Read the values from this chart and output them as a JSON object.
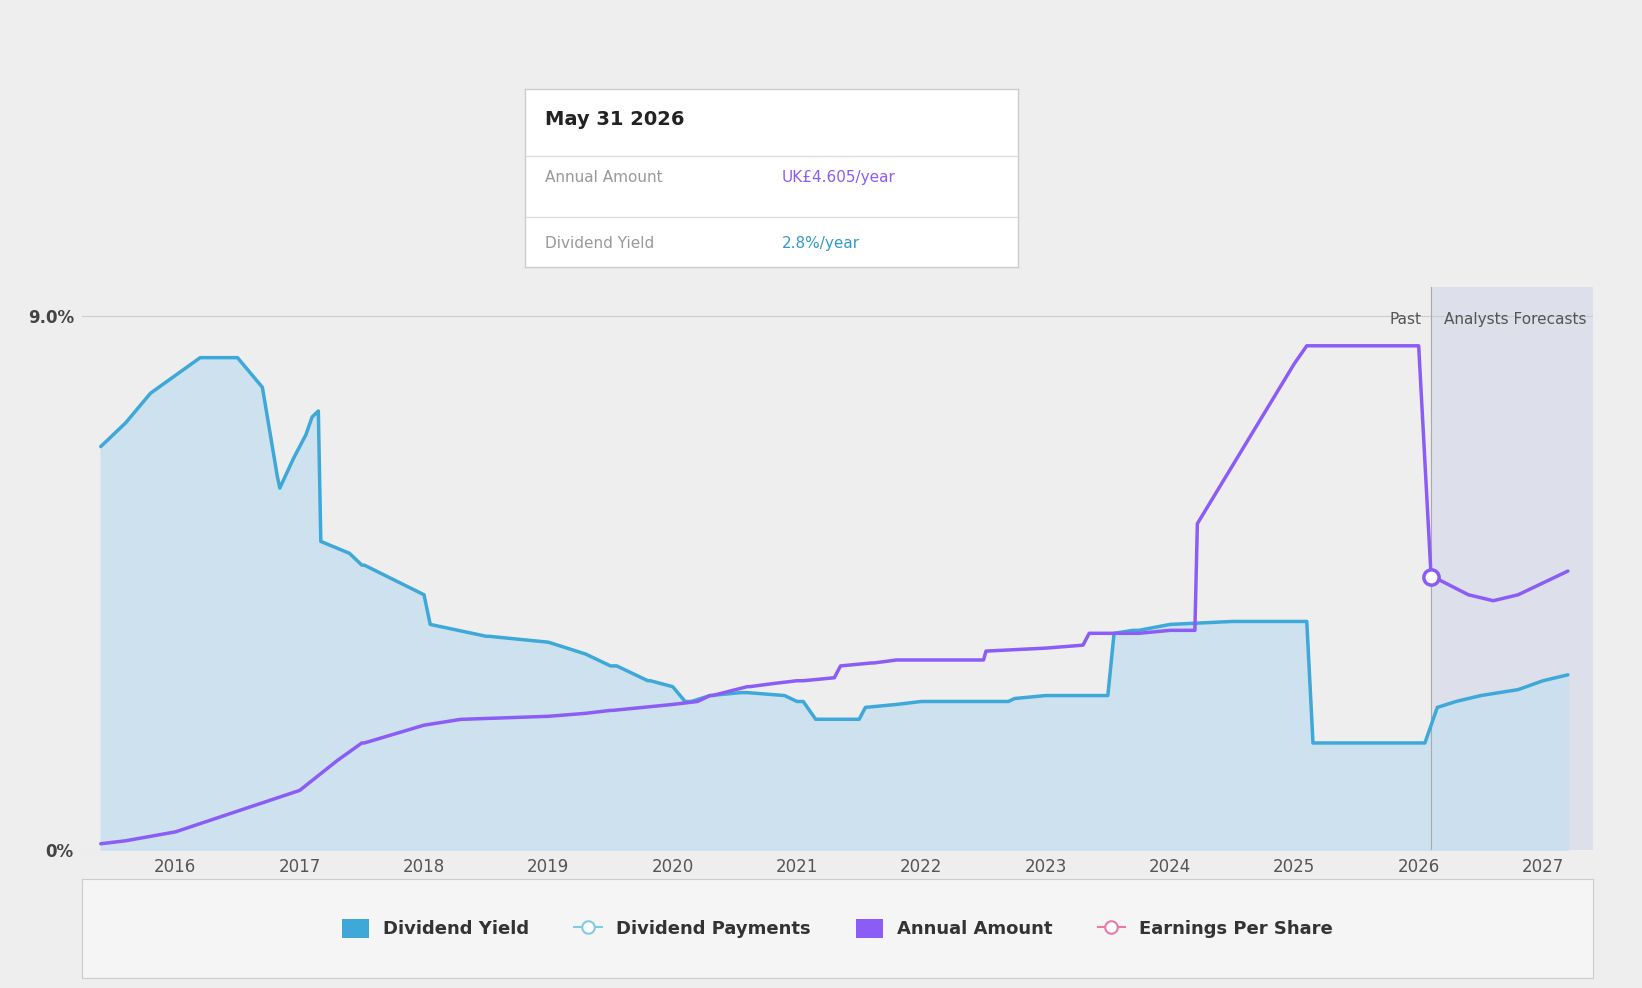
{
  "bg_color": "#eeeeee",
  "plot_bg_color": "#eeeeee",
  "forecast_bg_color": "#dde0ea",
  "dividend_yield_x": [
    2015.4,
    2015.6,
    2015.8,
    2016.0,
    2016.2,
    2016.5,
    2016.7,
    2016.82,
    2016.84,
    2016.95,
    2017.05,
    2017.1,
    2017.15,
    2017.17,
    2017.4,
    2017.5,
    2017.52,
    2018.0,
    2018.05,
    2018.5,
    2018.52,
    2019.0,
    2019.3,
    2019.5,
    2019.55,
    2019.8,
    2019.82,
    2020.0,
    2020.1,
    2020.15,
    2020.3,
    2020.55,
    2020.6,
    2020.9,
    2021.0,
    2021.05,
    2021.15,
    2021.5,
    2021.55,
    2021.8,
    2022.0,
    2022.5,
    2022.7,
    2022.75,
    2023.0,
    2023.05,
    2023.5,
    2023.55,
    2023.7,
    2023.75,
    2024.0,
    2024.5,
    2025.0,
    2025.05,
    2025.1,
    2025.15,
    2026.0,
    2026.05,
    2026.15,
    2026.3,
    2026.5,
    2026.8,
    2027.0,
    2027.2
  ],
  "dividend_yield_y": [
    6.8,
    7.2,
    7.7,
    8.0,
    8.3,
    8.3,
    7.8,
    6.3,
    6.1,
    6.6,
    7.0,
    7.3,
    7.4,
    5.2,
    5.0,
    4.8,
    4.8,
    4.3,
    3.8,
    3.6,
    3.6,
    3.5,
    3.3,
    3.1,
    3.1,
    2.85,
    2.85,
    2.75,
    2.5,
    2.5,
    2.6,
    2.65,
    2.65,
    2.6,
    2.5,
    2.5,
    2.2,
    2.2,
    2.4,
    2.45,
    2.5,
    2.5,
    2.5,
    2.55,
    2.6,
    2.6,
    2.6,
    3.65,
    3.7,
    3.7,
    3.8,
    3.85,
    3.85,
    3.85,
    3.85,
    1.8,
    1.8,
    1.8,
    2.4,
    2.5,
    2.6,
    2.7,
    2.85,
    2.95
  ],
  "dividend_yield_color": "#3ea8d8",
  "dividend_yield_fill_color": "#c8dff0",
  "annual_amount_x": [
    2015.4,
    2015.6,
    2016.0,
    2016.5,
    2017.0,
    2017.3,
    2017.5,
    2017.52,
    2018.0,
    2018.3,
    2018.32,
    2019.0,
    2019.3,
    2019.5,
    2019.52,
    2020.0,
    2020.2,
    2020.3,
    2020.32,
    2020.6,
    2020.62,
    2020.8,
    2021.0,
    2021.05,
    2021.3,
    2021.35,
    2021.6,
    2021.62,
    2021.8,
    2022.0,
    2022.5,
    2022.52,
    2023.0,
    2023.3,
    2023.35,
    2023.7,
    2023.75,
    2024.0,
    2024.2,
    2024.22,
    2025.0,
    2025.1,
    2025.12,
    2025.8,
    2026.0,
    2026.1,
    2026.12,
    2026.4,
    2026.6,
    2026.8,
    2027.0,
    2027.2
  ],
  "annual_amount_y": [
    0.1,
    0.15,
    0.3,
    0.65,
    1.0,
    1.5,
    1.8,
    1.8,
    2.1,
    2.2,
    2.2,
    2.25,
    2.3,
    2.35,
    2.35,
    2.45,
    2.5,
    2.6,
    2.6,
    2.75,
    2.75,
    2.8,
    2.85,
    2.85,
    2.9,
    3.1,
    3.15,
    3.15,
    3.2,
    3.2,
    3.2,
    3.35,
    3.4,
    3.45,
    3.65,
    3.65,
    3.65,
    3.7,
    3.7,
    5.5,
    8.2,
    8.5,
    8.5,
    8.5,
    8.5,
    4.6,
    4.6,
    4.3,
    4.2,
    4.3,
    4.5,
    4.7
  ],
  "annual_amount_color": "#8b5cf6",
  "forecast_start_x": 2026.1,
  "ylim": [
    0,
    9.5
  ],
  "xlim": [
    2015.25,
    2027.4
  ],
  "xticks": [
    2016,
    2017,
    2018,
    2019,
    2020,
    2021,
    2022,
    2023,
    2024,
    2025,
    2026,
    2027
  ],
  "tooltip_date": "May 31 2026",
  "tooltip_annual_label": "Annual Amount",
  "tooltip_annual_value": "UK£4.605/year",
  "tooltip_yield_label": "Dividend Yield",
  "tooltip_yield_value": "2.8%/year",
  "tooltip_annual_color": "#8b5cf6",
  "tooltip_yield_color": "#3399cc",
  "legend_items": [
    {
      "label": "Dividend Yield",
      "color": "#3ea8d8",
      "filled": true
    },
    {
      "label": "Dividend Payments",
      "color": "#80cce0",
      "filled": false
    },
    {
      "label": "Annual Amount",
      "color": "#8b5cf6",
      "filled": true
    },
    {
      "label": "Earnings Per Share",
      "color": "#e879a8",
      "filled": false
    }
  ],
  "marker_x": 2026.1,
  "past_label": "Past",
  "forecast_label": "Analysts Forecasts"
}
